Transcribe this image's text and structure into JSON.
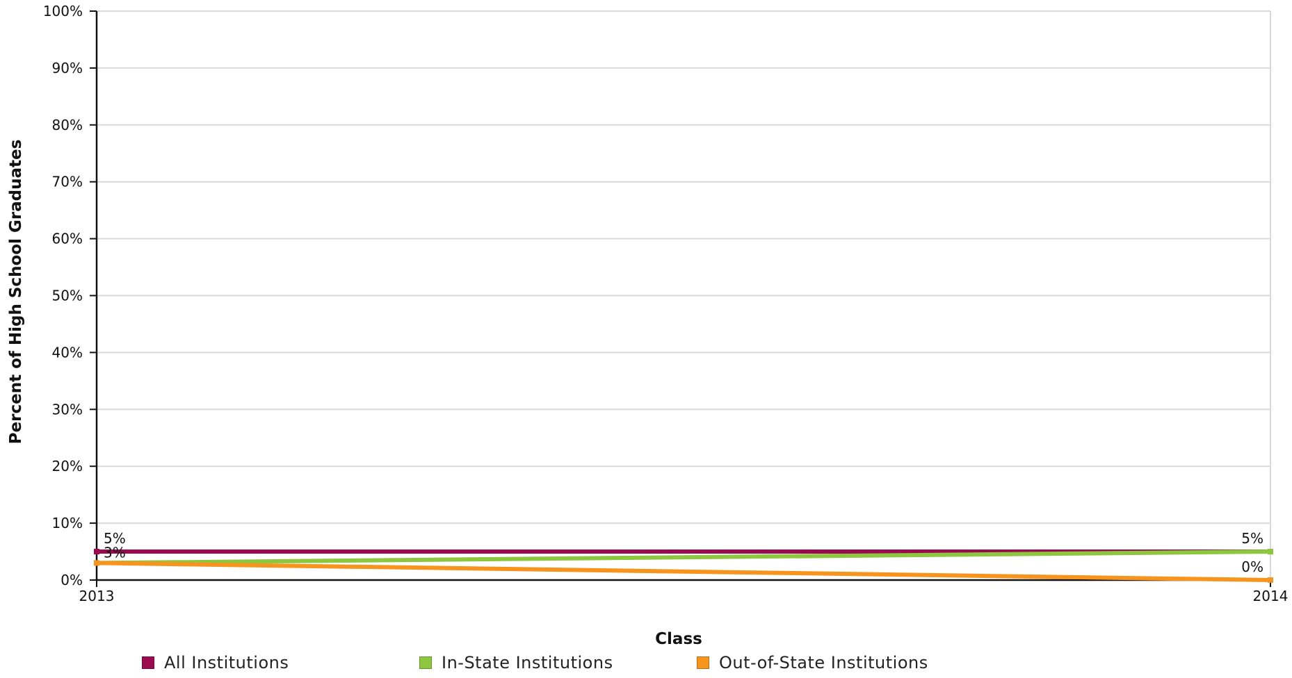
{
  "chart_data": {
    "type": "line",
    "xlabel": "Class",
    "ylabel": "Percent of High School Graduates",
    "x": [
      "2013",
      "2014"
    ],
    "yticks": [
      "0%",
      "10%",
      "20%",
      "30%",
      "40%",
      "50%",
      "60%",
      "70%",
      "80%",
      "90%",
      "100%"
    ],
    "ylim": [
      0,
      100
    ],
    "grid": true,
    "legend_position": "bottom",
    "series": [
      {
        "name": "All Institutions",
        "color": "#9b0a4f",
        "values": [
          5,
          5
        ],
        "labels": [
          "5%",
          "5%"
        ]
      },
      {
        "name": "In-State Institutions",
        "color": "#8dc63f",
        "values": [
          3,
          5
        ],
        "labels": [
          "3%",
          ""
        ]
      },
      {
        "name": "Out-of-State Institutions",
        "color": "#f7941d",
        "values": [
          3,
          0
        ],
        "labels": [
          "",
          "0%"
        ]
      }
    ]
  }
}
